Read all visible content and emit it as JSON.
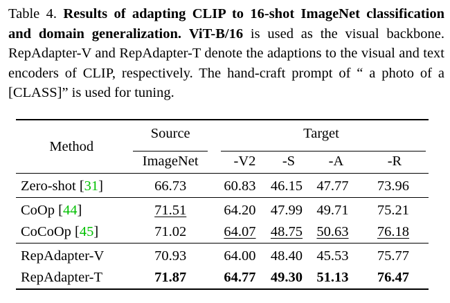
{
  "caption": {
    "label": "Table 4.",
    "bold_title": "Results of adapting CLIP to 16-shot ImageNet classification and domain generalization.",
    "backbone": "ViT-B/16",
    "text1": "is used as the visual backbone. RepAdapter-V and RepAdapter-T denote the adaptions to the visual and text encoders of CLIP, respectively. The hand-craft prompt of “ a photo of a [CLASS]” is used for tuning."
  },
  "table": {
    "header": {
      "method": "Method",
      "source": "Source",
      "target": "Target",
      "source_cols": [
        "ImageNet"
      ],
      "target_cols": [
        "-V2",
        "-S",
        "-A",
        "-R"
      ]
    },
    "groups": [
      {
        "rows": [
          {
            "method": "Zero-shot",
            "cite": "31",
            "values": [
              "66.73",
              "60.83",
              "46.15",
              "47.77",
              "73.96"
            ],
            "underline": [
              false,
              false,
              false,
              false,
              false
            ],
            "bold": [
              false,
              false,
              false,
              false,
              false
            ]
          }
        ]
      },
      {
        "rows": [
          {
            "method": "CoOp",
            "cite": "44",
            "values": [
              "71.51",
              "64.20",
              "47.99",
              "49.71",
              "75.21"
            ],
            "underline": [
              true,
              false,
              false,
              false,
              false
            ],
            "bold": [
              false,
              false,
              false,
              false,
              false
            ]
          },
          {
            "method": "CoCoOp",
            "cite": "45",
            "values": [
              "71.02",
              "64.07",
              "48.75",
              "50.63",
              "76.18"
            ],
            "underline": [
              false,
              true,
              true,
              true,
              true
            ],
            "bold": [
              false,
              false,
              false,
              false,
              false
            ]
          }
        ]
      },
      {
        "rows": [
          {
            "method": "RepAdapter-V",
            "cite": "",
            "values": [
              "70.93",
              "64.00",
              "48.40",
              "45.53",
              "75.77"
            ],
            "underline": [
              false,
              false,
              false,
              false,
              false
            ],
            "bold": [
              false,
              false,
              false,
              false,
              false
            ]
          },
          {
            "method": "RepAdapter-T",
            "cite": "",
            "values": [
              "71.87",
              "64.77",
              "49.30",
              "51.13",
              "76.47"
            ],
            "underline": [
              false,
              false,
              false,
              false,
              false
            ],
            "bold": [
              true,
              true,
              true,
              true,
              true
            ]
          }
        ]
      }
    ]
  }
}
